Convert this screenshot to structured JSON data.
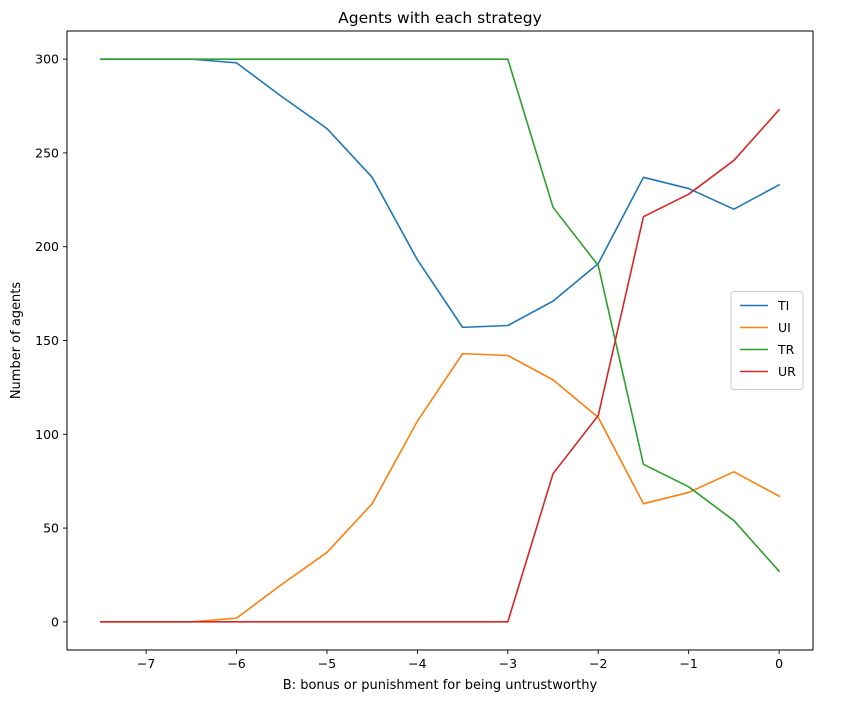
{
  "chart_data": {
    "type": "line",
    "title": "Agents with each strategy",
    "xlabel": "B: bonus or punishment for being untrustworthy",
    "ylabel": "Number of agents",
    "xlim": [
      -7.875,
      0.375
    ],
    "ylim": [
      -15,
      315
    ],
    "xticks": [
      -7,
      -6,
      -5,
      -4,
      -3,
      -2,
      -1,
      0
    ],
    "xtick_labels": [
      "−7",
      "−6",
      "−5",
      "−4",
      "−3",
      "−2",
      "−1",
      "0"
    ],
    "yticks": [
      0,
      50,
      100,
      150,
      200,
      250,
      300
    ],
    "ytick_labels": [
      "0",
      "50",
      "100",
      "150",
      "200",
      "250",
      "300"
    ],
    "grid": false,
    "legend_position": "center-right",
    "x": [
      -7.5,
      -6.5,
      -6,
      -5.5,
      -5,
      -4.5,
      -4,
      -3.5,
      -3,
      -2.5,
      -2,
      -1.5,
      -1,
      -0.5,
      0
    ],
    "series": [
      {
        "name": "TI",
        "color": "#1f77b4",
        "values": [
          300,
          300,
          298,
          280,
          263,
          237,
          193,
          157,
          158,
          171,
          191,
          237,
          231,
          220,
          233
        ]
      },
      {
        "name": "UI",
        "color": "#ff7f0e",
        "values": [
          0,
          0,
          2,
          20,
          37,
          63,
          107,
          143,
          142,
          129,
          109,
          63,
          69,
          80,
          67
        ]
      },
      {
        "name": "TR",
        "color": "#2ca02c",
        "values": [
          300,
          300,
          300,
          300,
          300,
          300,
          300,
          300,
          300,
          221,
          190,
          84,
          72,
          54,
          27
        ]
      },
      {
        "name": "UR",
        "color": "#d62728",
        "values": [
          0,
          0,
          0,
          0,
          0,
          0,
          0,
          0,
          0,
          79,
          110,
          216,
          228,
          246,
          273
        ]
      }
    ]
  }
}
